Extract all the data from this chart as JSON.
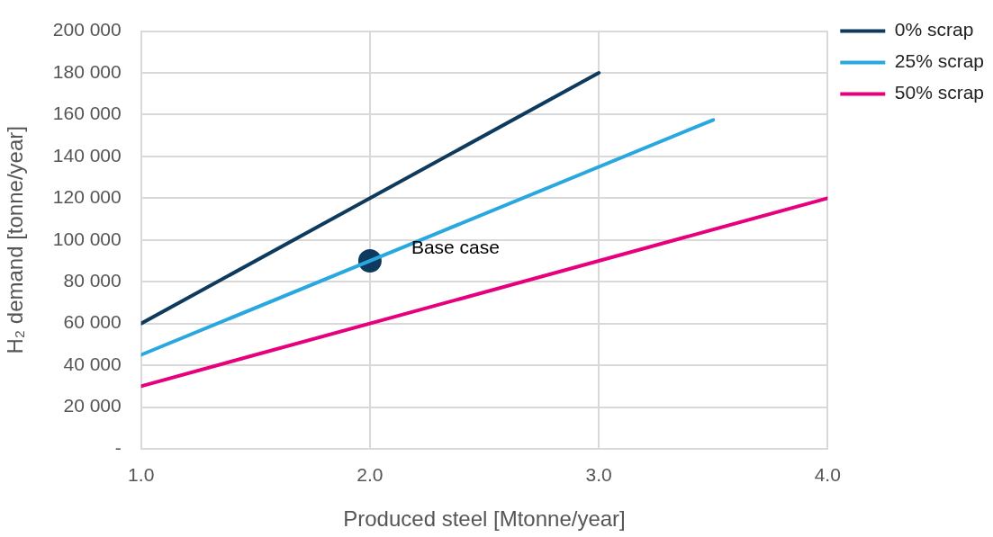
{
  "chart_data": {
    "type": "line",
    "xlabel": "Produced steel [Mtonne/year]",
    "ylabel": "H₂ demand [tonne/year]",
    "series": [
      {
        "name": "0% scrap",
        "color": "#0e3a5e",
        "x": [
          1,
          3
        ],
        "values": [
          60000,
          180000
        ]
      },
      {
        "name": "25% scrap",
        "color": "#29a8e0",
        "x": [
          1,
          3.5
        ],
        "values": [
          45000,
          157500
        ]
      },
      {
        "name": "50% scrap",
        "color": "#e6007e",
        "x": [
          1,
          4
        ],
        "values": [
          30000,
          120000
        ]
      },
      {
        "type": "scatter",
        "color": "#0e3a5e",
        "x": [
          2
        ],
        "values": [
          90000
        ],
        "marker": "circle"
      }
    ],
    "xlim": [
      1,
      4
    ],
    "xticks": [
      {
        "value": 1,
        "label": "1.0"
      },
      {
        "value": 2,
        "label": "2.0"
      },
      {
        "value": 3,
        "label": "3.0"
      },
      {
        "value": 4,
        "label": "4.0"
      }
    ],
    "ylim": [
      0,
      200000
    ],
    "yticks": [
      {
        "value": 0,
        "label": "-"
      },
      {
        "value": 20000,
        "label": "20 000"
      },
      {
        "value": 40000,
        "label": "40 000"
      },
      {
        "value": 60000,
        "label": "60 000"
      },
      {
        "value": 80000,
        "label": "80 000"
      },
      {
        "value": 100000,
        "label": "100 000"
      },
      {
        "value": 120000,
        "label": "120 000"
      },
      {
        "value": 140000,
        "label": "140 000"
      },
      {
        "value": 160000,
        "label": "160 000"
      },
      {
        "value": 180000,
        "label": "180 000"
      },
      {
        "value": 200000,
        "label": "200 000"
      }
    ],
    "grid": true,
    "legend": "right",
    "marker": "none",
    "line_style": "solid",
    "annotations": [
      {
        "text": "Base case",
        "x": 2,
        "y": 90000
      }
    ]
  }
}
